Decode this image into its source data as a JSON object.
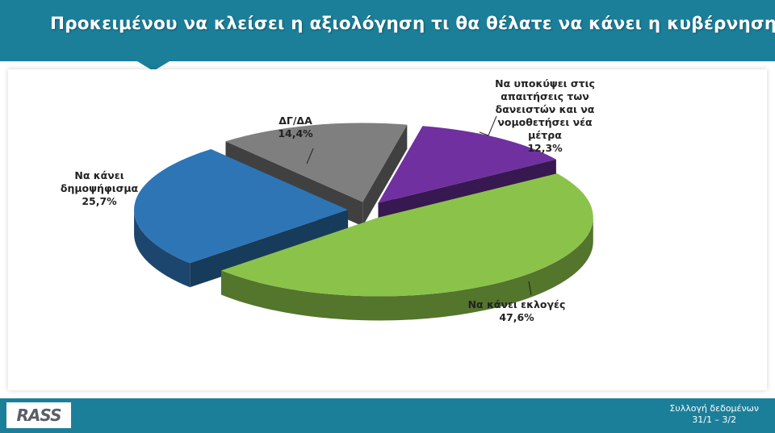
{
  "header": {
    "title": "Προκειμένου να κλείσει η αξιολόγηση τι θα θέλατε να κάνει η κυβέρνηση;"
  },
  "footer": {
    "logo_text": "RASS",
    "note_line1": "Συλλογή δεδομένων",
    "note_line2": "31/1 – 3/2"
  },
  "colors": {
    "header": "#1b7f9a"
  },
  "chart_data": {
    "type": "pie",
    "title": "",
    "slices": [
      {
        "label_lines": [
          "Να υποκύψει στις",
          "απαιτήσεις των",
          "δανειστών και να",
          "νομοθετήσει νέα",
          "μέτρα"
        ],
        "value": 12.3,
        "value_label": "12,3%",
        "color": "#7030a0"
      },
      {
        "label_lines": [
          "Να κάνει εκλογές"
        ],
        "value": 47.6,
        "value_label": "47,6%",
        "color": "#8bc34a"
      },
      {
        "label_lines": [
          "Να κάνει",
          "δημοψήφισμα"
        ],
        "value": 25.7,
        "value_label": "25,7%",
        "color": "#2e75b6"
      },
      {
        "label_lines": [
          "ΔΓ/ΔΑ"
        ],
        "value": 14.4,
        "value_label": "14,4%",
        "color": "#7f7f7f"
      }
    ]
  }
}
